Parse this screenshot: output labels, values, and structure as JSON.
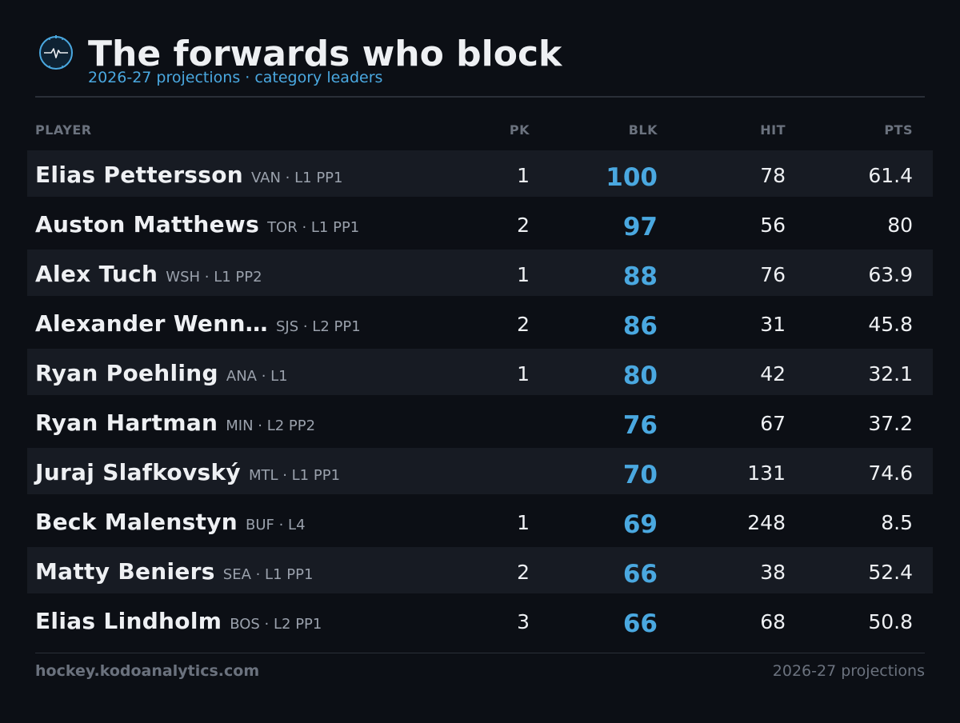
{
  "header": {
    "title": "The forwards who block",
    "subtitle": "2026-27 projections · category leaders",
    "logo_icon": "puck-heartbeat-icon",
    "accent": "#4aa8e0"
  },
  "table": {
    "columns": [
      "PLAYER",
      "PK",
      "BLK",
      "HIT",
      "PTS"
    ],
    "rows": [
      {
        "name": "Elias Pettersson",
        "meta": "VAN · L1 PP1",
        "pk": "1",
        "blk": "100",
        "hit": "78",
        "pts": "61.4"
      },
      {
        "name": "Auston Matthews",
        "meta": "TOR · L1 PP1",
        "pk": "2",
        "blk": "97",
        "hit": "56",
        "pts": "80"
      },
      {
        "name": "Alex Tuch",
        "meta": "WSH · L1 PP2",
        "pk": "1",
        "blk": "88",
        "hit": "76",
        "pts": "63.9"
      },
      {
        "name": "Alexander Wenn…",
        "meta": "SJS · L2 PP1",
        "pk": "2",
        "blk": "86",
        "hit": "31",
        "pts": "45.8"
      },
      {
        "name": "Ryan Poehling",
        "meta": "ANA · L1",
        "pk": "1",
        "blk": "80",
        "hit": "42",
        "pts": "32.1"
      },
      {
        "name": "Ryan Hartman",
        "meta": "MIN · L2 PP2",
        "pk": "",
        "blk": "76",
        "hit": "67",
        "pts": "37.2"
      },
      {
        "name": "Juraj Slafkovský",
        "meta": "MTL · L1 PP1",
        "pk": "",
        "blk": "70",
        "hit": "131",
        "pts": "74.6"
      },
      {
        "name": "Beck Malenstyn",
        "meta": "BUF · L4",
        "pk": "1",
        "blk": "69",
        "hit": "248",
        "pts": "8.5"
      },
      {
        "name": "Matty Beniers",
        "meta": "SEA · L1 PP1",
        "pk": "2",
        "blk": "66",
        "hit": "38",
        "pts": "52.4"
      },
      {
        "name": "Elias Lindholm",
        "meta": "BOS · L2 PP1",
        "pk": "3",
        "blk": "66",
        "hit": "68",
        "pts": "50.8"
      }
    ]
  },
  "footer": {
    "site": "hockey.kodoanalytics.com",
    "note": "2026-27 projections"
  }
}
